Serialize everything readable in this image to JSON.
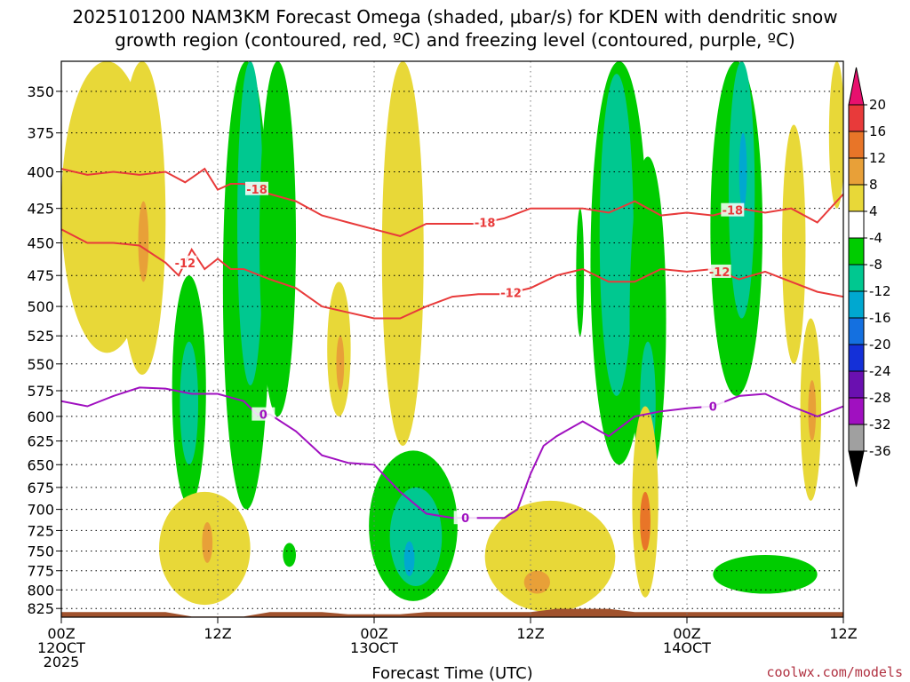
{
  "title": {
    "line1": "2025101200 NAM3KM Forecast Omega (shaded, μbar/s) for KDEN with dendritic snow",
    "line2": "growth region (contoured, red, ºC) and freezing level (contoured, purple, ºC)"
  },
  "credit": "coolwx.com/models",
  "chart_data": {
    "type": "heatmap",
    "title": "2025101200 NAM3KM Forecast Omega (shaded, μbar/s) for KDEN with dendritic snow growth region (contoured, red, ºC) and freezing level (contoured, purple, ºC)",
    "xlabel": "Forecast Time (UTC)",
    "ylabel": "",
    "x_units": "forecast hour",
    "xlim": [
      0,
      60
    ],
    "ylim": [
      837,
      333
    ],
    "y_scale": "log-pressure",
    "grid": true,
    "x_ticks": [
      {
        "hour": 0,
        "lines": [
          "00Z",
          "12OCT",
          "2025"
        ]
      },
      {
        "hour": 12,
        "lines": [
          "12Z"
        ]
      },
      {
        "hour": 24,
        "lines": [
          "00Z",
          "13OCT"
        ]
      },
      {
        "hour": 36,
        "lines": [
          "12Z"
        ]
      },
      {
        "hour": 48,
        "lines": [
          "00Z",
          "14OCT"
        ]
      },
      {
        "hour": 60,
        "lines": [
          "12Z"
        ]
      }
    ],
    "y_ticks": [
      350,
      375,
      400,
      425,
      450,
      475,
      500,
      525,
      550,
      575,
      600,
      625,
      650,
      675,
      700,
      725,
      750,
      775,
      800,
      825
    ],
    "colorbar": {
      "levels": [
        20,
        16,
        12,
        8,
        4,
        -4,
        -8,
        -12,
        -16,
        -20,
        -24,
        -28,
        -32,
        -36
      ],
      "colors": [
        "#e8106e",
        "#e83a3a",
        "#e87528",
        "#e8a038",
        "#e8d838",
        "#ffffff",
        "#00cc00",
        "#00c890",
        "#00a8d0",
        "#1470e0",
        "#1430d8",
        "#6a10b0",
        "#a010c0",
        "#a0a0a0",
        "#000000"
      ]
    },
    "terrain": {
      "color": "#a0522d",
      "surface_pressure": 830
    },
    "contours": [
      {
        "name": "dgz-upper",
        "label": "-18",
        "color": "#e83a3a",
        "x": [
          0,
          2,
          4,
          6,
          8,
          9.5,
          10,
          11,
          12,
          13,
          14,
          16,
          18,
          20,
          22,
          24,
          26,
          28,
          30,
          32,
          34,
          36,
          38,
          40,
          42,
          44,
          46,
          48,
          50,
          52,
          54,
          56,
          58,
          60
        ],
        "y": [
          398,
          402,
          400,
          402,
          400,
          407,
          404,
          398,
          412,
          408,
          408,
          415,
          420,
          430,
          435,
          440,
          445,
          436,
          436,
          436,
          432,
          425,
          425,
          425,
          428,
          420,
          430,
          428,
          430,
          425,
          428,
          425,
          435,
          415
        ],
        "labels_at": [
          15,
          32.5,
          51.5
        ]
      },
      {
        "name": "dgz-lower",
        "label": "-12",
        "color": "#e83a3a",
        "x": [
          0,
          2,
          4,
          6,
          8,
          9,
          10,
          11,
          12,
          13,
          14,
          16,
          18,
          20,
          22,
          24,
          26,
          28,
          30,
          32,
          34,
          36,
          38,
          40,
          42,
          44,
          46,
          48,
          50,
          52,
          54,
          56,
          58,
          60
        ],
        "y": [
          440,
          450,
          450,
          452,
          465,
          475,
          455,
          470,
          462,
          470,
          470,
          478,
          485,
          500,
          505,
          510,
          510,
          500,
          492,
          490,
          490,
          485,
          475,
          470,
          480,
          480,
          470,
          472,
          470,
          478,
          472,
          480,
          488,
          492
        ],
        "labels_at": [
          9.5,
          34.5,
          50.5
        ]
      },
      {
        "name": "freezing-level",
        "label": "0",
        "color": "#a010c0",
        "x": [
          0,
          2,
          4,
          6,
          8,
          10,
          12,
          14,
          15,
          16,
          18,
          20,
          22,
          24,
          26,
          28,
          30,
          32,
          34,
          35,
          36,
          37,
          38,
          40,
          42,
          44,
          46,
          48,
          50,
          52,
          54,
          56,
          58,
          60
        ],
        "y": [
          585,
          590,
          580,
          572,
          573,
          578,
          578,
          585,
          598,
          598,
          615,
          640,
          648,
          650,
          680,
          705,
          710,
          710,
          710,
          700,
          660,
          630,
          620,
          605,
          620,
          600,
          595,
          592,
          590,
          580,
          578,
          590,
          600,
          590
        ],
        "labels_at": [
          15.5,
          31,
          50
        ]
      }
    ],
    "omega_regions": [
      {
        "name": "ascent-hr11",
        "level": -8,
        "cx": 9.8,
        "cy": 585,
        "rx": 1.3,
        "ry": 110
      },
      {
        "name": "ascent-hr11-core",
        "level": -12,
        "cx": 9.8,
        "cy": 590,
        "rx": 0.7,
        "ry": 60
      },
      {
        "name": "ascent-hr14",
        "level": -8,
        "cx": 14.2,
        "cy": 480,
        "rx": 1.8,
        "ry": 220
      },
      {
        "name": "ascent-hr14-core",
        "level": -12,
        "cx": 14.5,
        "cy": 420,
        "rx": 1.0,
        "ry": 150
      },
      {
        "name": "ascent-hr16",
        "level": -8,
        "cx": 16.6,
        "cy": 440,
        "rx": 1.4,
        "ry": 160
      },
      {
        "name": "ascent-hr27",
        "level": -8,
        "cx": 27,
        "cy": 725,
        "rx": 3.4,
        "ry": 90
      },
      {
        "name": "ascent-hr27-core",
        "level": -12,
        "cx": 27.2,
        "cy": 735,
        "rx": 2.0,
        "ry": 60
      },
      {
        "name": "ascent-hr27-max",
        "level": -16,
        "cx": 26.7,
        "cy": 760,
        "rx": 0.4,
        "ry": 22
      },
      {
        "name": "ascent-hr42",
        "level": -8,
        "cx": 42.8,
        "cy": 470,
        "rx": 2.2,
        "ry": 180
      },
      {
        "name": "ascent-hr42-core",
        "level": -12,
        "cx": 42.6,
        "cy": 460,
        "rx": 1.3,
        "ry": 120
      },
      {
        "name": "ascent-hr45",
        "level": -8,
        "cx": 45,
        "cy": 530,
        "rx": 1.4,
        "ry": 140
      },
      {
        "name": "ascent-hr45-core",
        "level": -12,
        "cx": 45,
        "cy": 590,
        "rx": 0.6,
        "ry": 60
      },
      {
        "name": "ascent-hr52",
        "level": -8,
        "cx": 51.8,
        "cy": 440,
        "rx": 2.0,
        "ry": 140
      },
      {
        "name": "ascent-hr52-core",
        "level": -12,
        "cx": 52.2,
        "cy": 420,
        "rx": 1.0,
        "ry": 90
      },
      {
        "name": "ascent-hr52-max",
        "level": -16,
        "cx": 52.3,
        "cy": 400,
        "rx": 0.3,
        "ry": 25
      },
      {
        "name": "ascent-hr54-low",
        "level": -8,
        "cx": 54,
        "cy": 780,
        "rx": 4.0,
        "ry": 25
      },
      {
        "name": "ascent-hr22-low",
        "level": -8,
        "cx": 17.5,
        "cy": 755,
        "rx": 0.5,
        "ry": 15
      },
      {
        "name": "ascent-hr39-small",
        "level": -8,
        "cx": 39.8,
        "cy": 475,
        "rx": 0.3,
        "ry": 50
      },
      {
        "name": "subsidence-hr3",
        "level": 4,
        "cx": 3.5,
        "cy": 430,
        "rx": 3.5,
        "ry": 110
      },
      {
        "name": "subsidence-hr5",
        "level": 4,
        "cx": 6.2,
        "cy": 420,
        "rx": 1.8,
        "ry": 140
      },
      {
        "name": "subsidence-hr6-core",
        "level": 8,
        "cx": 6.3,
        "cy": 450,
        "rx": 0.4,
        "ry": 30
      },
      {
        "name": "subsidence-hr10-low",
        "level": 4,
        "cx": 11,
        "cy": 750,
        "rx": 3.5,
        "ry": 70
      },
      {
        "name": "subsidence-hr11-core",
        "level": 8,
        "cx": 11.2,
        "cy": 740,
        "rx": 0.4,
        "ry": 25
      },
      {
        "name": "subsidence-hr21",
        "level": 4,
        "cx": 21.3,
        "cy": 540,
        "rx": 0.9,
        "ry": 60
      },
      {
        "name": "subsidence-hr21-core",
        "level": 8,
        "cx": 21.4,
        "cy": 550,
        "rx": 0.3,
        "ry": 25
      },
      {
        "name": "subsidence-hr26",
        "level": 4,
        "cx": 26.2,
        "cy": 430,
        "rx": 1.6,
        "ry": 200
      },
      {
        "name": "subsidence-hr36-low",
        "level": 4,
        "cx": 37.5,
        "cy": 760,
        "rx": 5.0,
        "ry": 70
      },
      {
        "name": "subsidence-hr36-core",
        "level": 8,
        "cx": 36.5,
        "cy": 790,
        "rx": 1.0,
        "ry": 15
      },
      {
        "name": "subsidence-hr44",
        "level": 4,
        "cx": 44.8,
        "cy": 700,
        "rx": 1.0,
        "ry": 110
      },
      {
        "name": "subsidence-hr44-core",
        "level": 12,
        "cx": 44.8,
        "cy": 715,
        "rx": 0.4,
        "ry": 35
      },
      {
        "name": "subsidence-hr57",
        "level": 4,
        "cx": 56.2,
        "cy": 460,
        "rx": 0.9,
        "ry": 90
      },
      {
        "name": "subsidence-hr58",
        "level": 4,
        "cx": 57.5,
        "cy": 600,
        "rx": 0.8,
        "ry": 90
      },
      {
        "name": "subsidence-hr58-core",
        "level": 8,
        "cx": 57.6,
        "cy": 595,
        "rx": 0.3,
        "ry": 30
      },
      {
        "name": "subsidence-hr60",
        "level": 4,
        "cx": 59.5,
        "cy": 370,
        "rx": 0.6,
        "ry": 55
      }
    ]
  }
}
